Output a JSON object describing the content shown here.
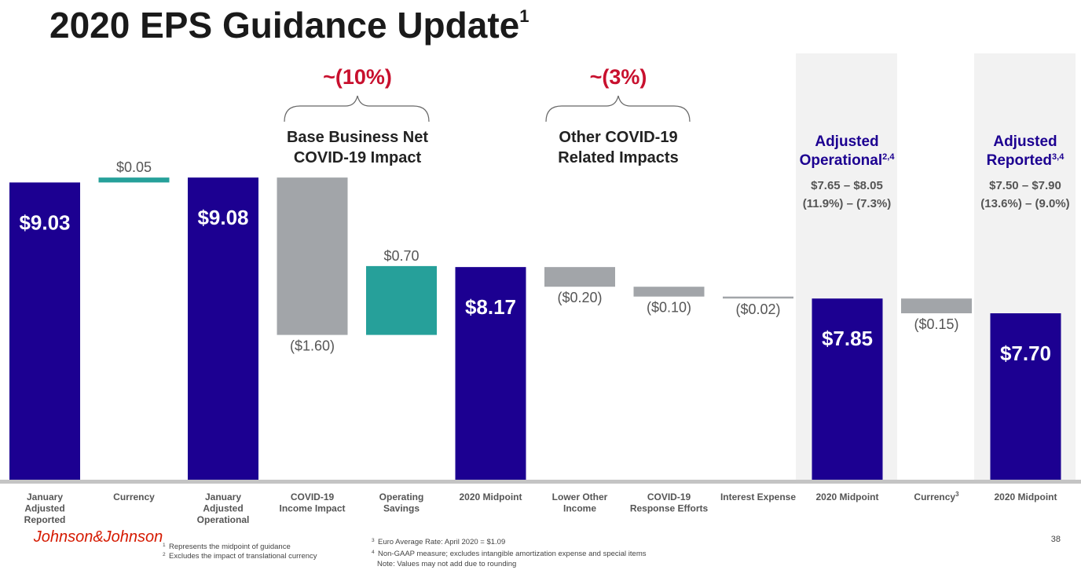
{
  "title": "2020 EPS Guidance Update",
  "title_sup": "1",
  "chart_data": {
    "type": "waterfall",
    "categories": [
      "January Adjusted Reported",
      "Currency",
      "January Adjusted Operational",
      "COVID-19 Income Impact",
      "Operating Savings",
      "2020 Midpoint",
      "Lower Other Income",
      "COVID-19 Response Efforts",
      "Interest Expense",
      "2020 Midpoint",
      "Currency",
      "2020 Midpoint"
    ],
    "category_sups": [
      null,
      null,
      null,
      null,
      null,
      null,
      null,
      null,
      null,
      null,
      "3",
      null
    ],
    "values": [
      9.03,
      0.05,
      9.08,
      -1.6,
      0.7,
      8.17,
      -0.2,
      -0.1,
      -0.02,
      7.85,
      -0.15,
      7.7
    ],
    "value_labels": [
      "$9.03",
      "$0.05",
      "$9.08",
      "($1.60)",
      "$0.70",
      "$8.17",
      "($0.20)",
      "($0.10)",
      "($0.02)",
      "$7.85",
      "($0.15)",
      "$7.70"
    ],
    "measures": [
      "absolute",
      "relative",
      "absolute",
      "relative",
      "relative",
      "absolute",
      "relative",
      "relative",
      "relative",
      "absolute",
      "relative",
      "absolute"
    ],
    "colors": {
      "total": "#1c0091",
      "increase": "#26a09a",
      "decrease": "#a2a5a9"
    },
    "ylim": [
      6,
      9.6
    ]
  },
  "annotations": {
    "brackets": [
      {
        "label": "~(10%)",
        "lines": [
          "Base Business Net",
          "COVID-19 Impact"
        ]
      },
      {
        "label": "~(3%)",
        "lines": [
          "Other COVID-19",
          "Related Impacts"
        ]
      }
    ],
    "panels": [
      {
        "title": "Adjusted",
        "subtitle": "Operational",
        "sup": "2,4",
        "range": "$7.65 – $8.05",
        "growth": "(11.9%) – (7.3%)"
      },
      {
        "title": "Adjusted",
        "subtitle": "Reported",
        "sup": "3,4",
        "range": "$7.50 – $7.90",
        "growth": "(13.6%) – (9.0%)"
      }
    ]
  },
  "footnotes": [
    {
      "mark": "1",
      "text": "Represents the midpoint of guidance"
    },
    {
      "mark": "2",
      "text": "Excludes the impact of translational currency"
    },
    {
      "mark": "3",
      "text": "Euro Average Rate: April 2020 = $1.09"
    },
    {
      "mark": "4",
      "text": "Non-GAAP measure; excludes intangible amortization expense and special items"
    }
  ],
  "note": "Note: Values may not add due to rounding",
  "page_number": "38",
  "logo": "Johnson&Johnson"
}
